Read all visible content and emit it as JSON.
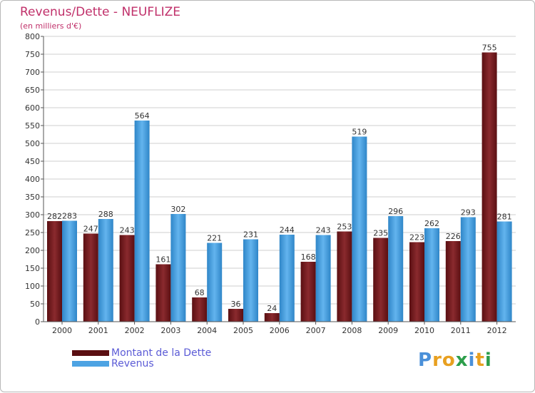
{
  "header": {
    "title": "Revenus/Dette - NEUFLIZE",
    "subtitle": "(en milliers d'€)"
  },
  "logo": {
    "text": "Proxiti",
    "letters": [
      "P",
      "r",
      "o",
      "x",
      "i",
      "t",
      "i"
    ],
    "colors": [
      "#4a90d9",
      "#e8a020",
      "#e8a020",
      "#2c9e4b",
      "#4a90d9",
      "#e8a020",
      "#2c9e4b"
    ]
  },
  "chart_data": {
    "type": "bar",
    "title": "Revenus/Dette - NEUFLIZE",
    "ylabel": "(en milliers d'€)",
    "xlabel": "",
    "categories": [
      "2000",
      "2001",
      "2002",
      "2003",
      "2004",
      "2005",
      "2006",
      "2007",
      "2008",
      "2009",
      "2010",
      "2011",
      "2012"
    ],
    "series": [
      {
        "name": "Montant de la Dette",
        "values": [
          282,
          247,
          243,
          161,
          68,
          36,
          24,
          168,
          253,
          235,
          223,
          226,
          755
        ],
        "color": "#7a1c20"
      },
      {
        "name": "Revenus",
        "values": [
          283,
          288,
          564,
          302,
          221,
          231,
          244,
          243,
          519,
          296,
          262,
          293,
          281
        ],
        "color": "#4da3e3"
      }
    ],
    "ylim": [
      0,
      800
    ],
    "yticks": [
      0,
      50,
      100,
      150,
      200,
      250,
      300,
      350,
      400,
      450,
      500,
      550,
      600,
      650,
      700,
      750,
      800
    ],
    "grid": true,
    "legend": "bottom-left"
  }
}
